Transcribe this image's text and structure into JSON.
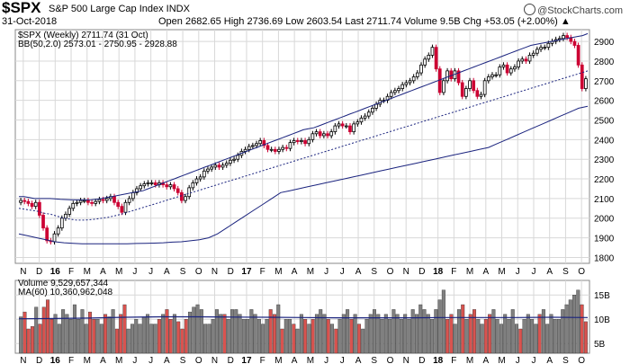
{
  "header": {
    "symbol": "$SPX",
    "name": "S&P 500 Large Cap Index INDX",
    "date": "31-Oct-2018",
    "ohlc": "Open 2682.65  High 2736.69  Low 2603.54  Last 2711.74  Volume 9.5B  Chg +53.05 (+2.00%) ▲",
    "brand": "@StockCharts.com"
  },
  "legend": {
    "price": "$SPX (Weekly) 2711.74 (31 Oct)",
    "bb": "BB(50,2.0) 2573.01 - 2750.95 - 2928.88",
    "volume": "Volume 9,529,657,344",
    "ma": "MA(60) 10,360,962,048"
  },
  "colors": {
    "up": "#000000",
    "down": "#cc0033",
    "band": "#1a237e",
    "volume_up": "#808080",
    "volume_down": "#d9534f",
    "ma": "#1a237e",
    "grid": "#d8d8d8"
  },
  "chart_data": [
    {
      "type": "line",
      "subtype": "candlestick-weekly-with-bollinger-bands",
      "series": [
        {
          "name": "$SPX (Weekly)",
          "values": [
            2090,
            2085,
            2075,
            2060,
            2080,
            2015,
            1950,
            1885,
            1880,
            1920,
            1950,
            2000,
            2020,
            2050,
            2075,
            2080,
            2090,
            2090,
            2080,
            2075,
            2085,
            2095,
            2090,
            2100,
            2110,
            2080,
            2060,
            2030,
            2080,
            2100,
            2130,
            2150,
            2165,
            2175,
            2180,
            2180,
            2170,
            2180,
            2170,
            2160,
            2170,
            2150,
            2130,
            2090,
            2110,
            2155,
            2180,
            2200,
            2210,
            2240,
            2250,
            2260,
            2270,
            2260,
            2270,
            2280,
            2295,
            2300,
            2320,
            2340,
            2350,
            2365,
            2370,
            2380,
            2395,
            2370,
            2350,
            2350,
            2340,
            2350,
            2360,
            2355,
            2385,
            2395,
            2390,
            2395,
            2380,
            2400,
            2430,
            2440,
            2420,
            2430,
            2420,
            2440,
            2470,
            2480,
            2470,
            2470,
            2440,
            2480,
            2490,
            2510,
            2520,
            2540,
            2560,
            2580,
            2600,
            2600,
            2620,
            2640,
            2650,
            2660,
            2680,
            2690,
            2700,
            2720,
            2740,
            2780,
            2810,
            2830,
            2870,
            2760,
            2640,
            2700,
            2750,
            2710,
            2750,
            2690,
            2620,
            2660,
            2700,
            2650,
            2620,
            2630,
            2700,
            2720,
            2730,
            2730,
            2770,
            2780,
            2740,
            2760,
            2770,
            2800,
            2810,
            2800,
            2830,
            2840,
            2860,
            2870,
            2870,
            2890,
            2900,
            2910,
            2915,
            2930,
            2920,
            2900,
            2880,
            2780,
            2660,
            2710
          ]
        },
        {
          "name": "BB(50,2.0) upper",
          "values": [
            2110,
            2110,
            2105,
            2100,
            2100,
            2100,
            2100,
            2098,
            2096,
            2095,
            2094,
            2093,
            2093,
            2093,
            2094,
            2096,
            2100,
            2105,
            2110,
            2115,
            2120,
            2125,
            2130,
            2135,
            2140,
            2150,
            2160,
            2170,
            2180,
            2190,
            2200,
            2210,
            2220,
            2230,
            2240,
            2250,
            2260,
            2270,
            2280,
            2290,
            2300,
            2310,
            2320,
            2330,
            2340,
            2350,
            2360,
            2370,
            2380,
            2390,
            2400,
            2410,
            2420,
            2430,
            2440,
            2450,
            2455,
            2460,
            2470,
            2480,
            2490,
            2500,
            2510,
            2520,
            2530,
            2540,
            2550,
            2560,
            2570,
            2580,
            2590,
            2600,
            2610,
            2620,
            2630,
            2640,
            2650,
            2660,
            2670,
            2680,
            2690,
            2700,
            2710,
            2720,
            2730,
            2740,
            2750,
            2760,
            2770,
            2780,
            2790,
            2800,
            2810,
            2820,
            2830,
            2840,
            2850,
            2860,
            2870,
            2880,
            2885,
            2890,
            2895,
            2900,
            2905,
            2910,
            2915,
            2920,
            2925,
            2930,
            2940
          ]
        },
        {
          "name": "BB(50,2.0) mid",
          "values": [
            2050,
            2045,
            2040,
            2035,
            2025,
            2020,
            2010,
            2000,
            1995,
            1990,
            1990,
            1992,
            1995,
            2000,
            2005,
            2012,
            2020,
            2030,
            2040,
            2050,
            2060,
            2070,
            2080,
            2090,
            2100,
            2110,
            2120,
            2130,
            2140,
            2150,
            2160,
            2170,
            2180,
            2190,
            2200,
            2210,
            2220,
            2230,
            2240,
            2250,
            2260,
            2270,
            2280,
            2290,
            2300,
            2310,
            2320,
            2330,
            2340,
            2350,
            2360,
            2370,
            2380,
            2390,
            2400,
            2410,
            2420,
            2430,
            2440,
            2450,
            2460,
            2470,
            2480,
            2490,
            2500,
            2510,
            2520,
            2530,
            2540,
            2550,
            2560,
            2570,
            2580,
            2590,
            2600,
            2610,
            2620,
            2630,
            2640,
            2650,
            2660,
            2670,
            2680,
            2690,
            2700,
            2710,
            2720,
            2730,
            2740,
            2750
          ]
        },
        {
          "name": "BB(50,2.0) lower",
          "values": [
            1920,
            1910,
            1900,
            1890,
            1880,
            1875,
            1872,
            1870,
            1870,
            1870,
            1870,
            1870,
            1870,
            1871,
            1872,
            1873,
            1875,
            1878,
            1880,
            1885,
            1890,
            1900,
            1920,
            1950,
            1980,
            2010,
            2040,
            2070,
            2100,
            2130,
            2140,
            2150,
            2160,
            2170,
            2180,
            2190,
            2200,
            2210,
            2220,
            2230,
            2240,
            2250,
            2260,
            2270,
            2280,
            2290,
            2300,
            2310,
            2320,
            2330,
            2340,
            2350,
            2360,
            2380,
            2400,
            2420,
            2440,
            2460,
            2480,
            2500,
            2520,
            2540,
            2560,
            2570
          ]
        }
      ],
      "x_tick_labels": [
        "N",
        "D",
        "16",
        "F",
        "M",
        "A",
        "M",
        "J",
        "J",
        "A",
        "S",
        "O",
        "N",
        "D",
        "17",
        "F",
        "M",
        "A",
        "M",
        "J",
        "J",
        "A",
        "S",
        "O",
        "N",
        "D",
        "18",
        "F",
        "M",
        "A",
        "M",
        "J",
        "J",
        "A",
        "S",
        "O"
      ],
      "y_tick_labels": [
        "1800",
        "1900",
        "2000",
        "2100",
        "2200",
        "2300",
        "2400",
        "2500",
        "2600",
        "2700",
        "2800",
        "2900"
      ],
      "ylim": [
        1770,
        2960
      ],
      "grid": true
    },
    {
      "type": "bar",
      "subtype": "volume-with-moving-average",
      "series": [
        {
          "name": "Volume",
          "values": [
            10.5,
            11.5,
            8,
            8.5,
            12.5,
            9,
            12.5,
            14,
            10,
            11,
            9,
            12,
            11,
            10,
            13,
            10,
            12,
            9,
            11.5,
            10,
            10,
            9,
            11,
            10.5,
            12,
            8,
            11,
            13,
            8,
            9,
            10,
            9,
            10.5,
            11,
            9,
            9,
            10,
            11,
            12,
            10,
            11,
            9.5,
            8,
            10,
            11.5,
            12.5,
            13,
            12,
            9,
            9,
            10,
            12,
            11,
            11,
            10,
            12,
            12,
            11,
            10,
            10,
            12,
            11,
            10,
            9,
            10,
            12,
            11,
            13,
            8,
            10,
            10,
            9,
            8,
            11,
            10,
            9,
            10,
            11,
            12,
            11,
            10,
            9,
            8,
            10,
            11,
            12,
            10,
            11,
            9,
            8,
            10,
            11,
            12,
            11,
            10,
            11,
            10,
            12,
            11,
            10,
            11,
            10,
            12,
            11,
            13,
            12,
            11,
            10,
            12,
            14,
            16,
            10,
            11,
            9,
            12,
            13,
            10,
            11,
            12,
            10,
            9,
            10,
            11,
            12,
            10,
            9,
            11,
            10,
            12,
            9,
            8,
            10,
            11,
            10,
            9,
            11,
            12,
            9,
            11,
            10,
            10,
            12,
            13,
            14,
            15,
            16,
            13,
            9.5
          ]
        },
        {
          "name": "MA(60)",
          "values": [
            10.1,
            10.15,
            10.25,
            10.4,
            10.5,
            10.5,
            10.45,
            10.4,
            10.35,
            10.3,
            10.3,
            10.3,
            10.35,
            10.35,
            10.35,
            10.4,
            10.36
          ]
        }
      ],
      "y_tick_labels": [
        "5B",
        "10B",
        "15B"
      ],
      "ylim": [
        3,
        18
      ],
      "grid": true
    }
  ]
}
